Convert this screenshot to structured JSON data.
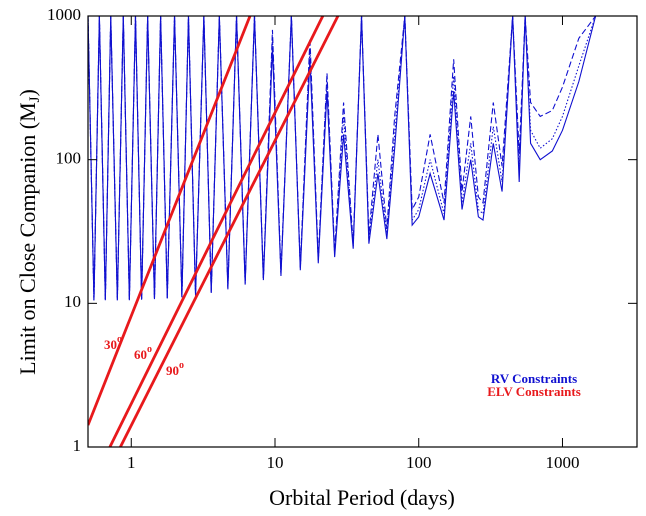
{
  "chart_data": {
    "type": "line",
    "xlabel": "Orbital Period (days)",
    "ylabel": {
      "main": "Limit on Close Companion (M",
      "sub": "J",
      "end": ")"
    },
    "xscale": "log",
    "yscale": "log",
    "xlim": [
      0.5,
      3300
    ],
    "ylim": [
      1,
      1000
    ],
    "xticks": [
      1,
      10,
      100,
      1000
    ],
    "yticks": [
      1,
      10,
      100,
      1000
    ],
    "x": [
      0.5,
      0.55,
      0.6,
      0.66,
      0.72,
      0.8,
      0.88,
      0.97,
      1.07,
      1.18,
      1.3,
      1.45,
      1.6,
      1.78,
      2.0,
      2.25,
      2.5,
      2.8,
      3.2,
      3.6,
      4.1,
      4.7,
      5.4,
      6.2,
      7.2,
      8.3,
      9.6,
      11,
      13,
      15,
      17.5,
      20,
      23,
      26,
      30,
      35,
      40,
      45,
      52,
      60,
      68,
      80,
      90,
      100,
      120,
      150,
      175,
      200,
      230,
      260,
      280,
      330,
      380,
      450,
      500,
      550,
      600,
      700,
      850,
      1000,
      1300,
      1700,
      2000
    ],
    "series": [
      {
        "style": "solid",
        "color": "#1010d0",
        "values": [
          1000,
          10.5,
          1000,
          10.5,
          1000,
          10.5,
          1000,
          10.5,
          1000,
          10.6,
          1000,
          10.7,
          1000,
          10.8,
          1000,
          11,
          1000,
          11.3,
          1000,
          11.8,
          1000,
          12.5,
          1000,
          13.5,
          1000,
          14.5,
          600,
          15.5,
          1000,
          17,
          500,
          19,
          300,
          21,
          150,
          24,
          1000,
          26,
          80,
          28,
          120,
          1000,
          35,
          40,
          80,
          38,
          300,
          45,
          100,
          40,
          38,
          130,
          60,
          1000,
          70,
          1000,
          130,
          100,
          115,
          160,
          350,
          1000,
          1000
        ]
      },
      {
        "style": "dashed",
        "color": "#1010d0",
        "values": [
          1000,
          10.5,
          1000,
          10.5,
          1000,
          10.6,
          1000,
          10.6,
          1000,
          10.7,
          1000,
          10.8,
          1000,
          11,
          1000,
          11.2,
          1000,
          11.6,
          1000,
          12.2,
          1000,
          13,
          1000,
          14,
          1000,
          15,
          800,
          16.5,
          1000,
          18,
          700,
          20.5,
          400,
          23,
          250,
          26,
          1000,
          30,
          150,
          33,
          200,
          1000,
          45,
          55,
          150,
          50,
          500,
          60,
          200,
          55,
          50,
          250,
          90,
          1000,
          110,
          1000,
          250,
          200,
          220,
          320,
          700,
          1000,
          1000
        ]
      },
      {
        "style": "dotted",
        "color": "#1010d0",
        "values": [
          1000,
          10.5,
          1000,
          10.5,
          1000,
          10.5,
          1000,
          10.6,
          1000,
          10.6,
          1000,
          10.7,
          1000,
          10.9,
          1000,
          11.1,
          1000,
          11.5,
          1000,
          12,
          1000,
          12.8,
          1000,
          13.8,
          1000,
          14.8,
          700,
          16,
          1000,
          17.5,
          600,
          19.8,
          350,
          22,
          200,
          25,
          1000,
          28,
          100,
          30,
          150,
          1000,
          38,
          45,
          100,
          42,
          380,
          50,
          130,
          45,
          42,
          170,
          70,
          1000,
          85,
          1000,
          160,
          120,
          140,
          200,
          450,
          1000,
          1000
        ]
      },
      {
        "style": "solid",
        "color": "#e8191c",
        "label": "30",
        "label_sup": "o",
        "x": [
          0.5,
          6.7
        ],
        "values": [
          1.42,
          1000
        ]
      },
      {
        "style": "solid",
        "color": "#e8191c",
        "label": "60",
        "label_sup": "o",
        "x": [
          0.71,
          21.5
        ],
        "values": [
          1,
          1000
        ]
      },
      {
        "style": "solid",
        "color": "#e8191c",
        "label": "90",
        "label_sup": "o",
        "x": [
          0.84,
          27.4
        ],
        "values": [
          1,
          1000
        ]
      }
    ],
    "legend": [
      {
        "label": "RV Constraints",
        "color": "#1010d0"
      },
      {
        "label": "ELV Constraints",
        "color": "#e8191c"
      }
    ],
    "legend_position": "lower right"
  }
}
